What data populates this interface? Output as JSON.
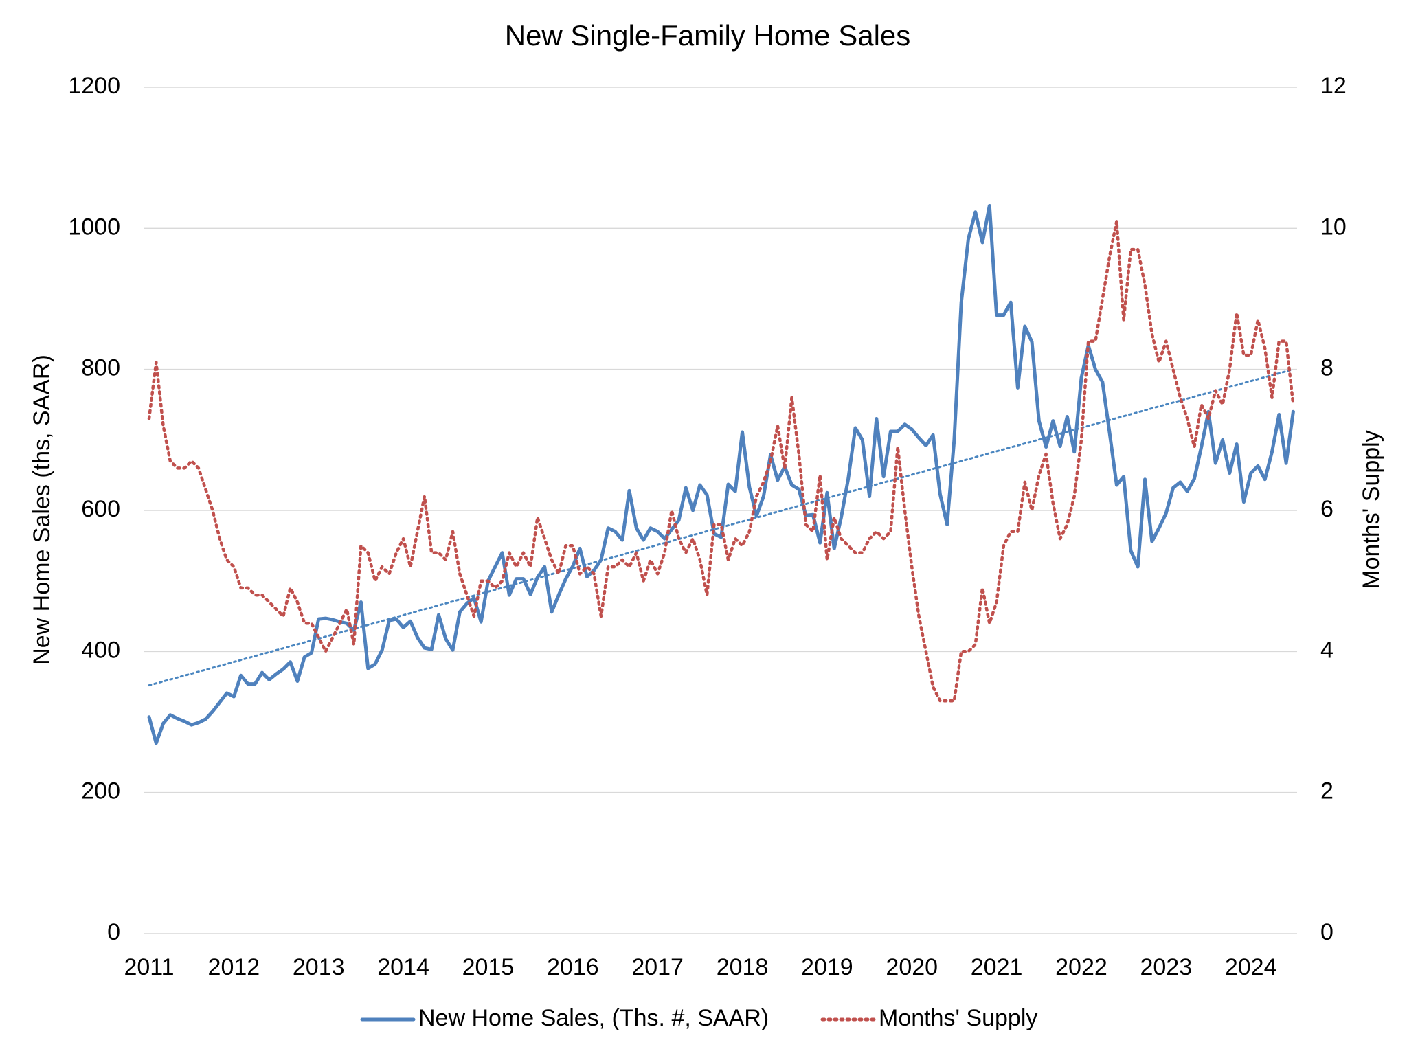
{
  "chart_data": {
    "type": "line",
    "title": "New Single-Family Home Sales",
    "y_label": "New Home Sales (ths, SAAR)",
    "y2_label": "Months' Supply",
    "categories": [
      "2011",
      null,
      null,
      null,
      null,
      null,
      null,
      null,
      null,
      null,
      null,
      null,
      "2012",
      null,
      null,
      null,
      null,
      null,
      null,
      null,
      null,
      null,
      null,
      null,
      "2013",
      null,
      null,
      null,
      null,
      null,
      null,
      null,
      null,
      null,
      null,
      null,
      "2014",
      null,
      null,
      null,
      null,
      null,
      null,
      null,
      null,
      null,
      null,
      null,
      "2015",
      null,
      null,
      null,
      null,
      null,
      null,
      null,
      null,
      null,
      null,
      null,
      "2016",
      null,
      null,
      null,
      null,
      null,
      null,
      null,
      null,
      null,
      null,
      null,
      "2017",
      null,
      null,
      null,
      null,
      null,
      null,
      null,
      null,
      null,
      null,
      null,
      "2018",
      null,
      null,
      null,
      null,
      null,
      null,
      null,
      null,
      null,
      null,
      null,
      "2019",
      null,
      null,
      null,
      null,
      null,
      null,
      null,
      null,
      null,
      null,
      null,
      "2020",
      null,
      null,
      null,
      null,
      null,
      null,
      null,
      null,
      null,
      null,
      null,
      "2021",
      null,
      null,
      null,
      null,
      null,
      null,
      null,
      null,
      null,
      null,
      null,
      "2022",
      null,
      null,
      null,
      null,
      null,
      null,
      null,
      null,
      null,
      null,
      null,
      "2023",
      null,
      null,
      null,
      null,
      null,
      null,
      null,
      null,
      null,
      null,
      null,
      "2024",
      null,
      null,
      null,
      null,
      null,
      null
    ],
    "series": [
      {
        "name": "New Home Sales, (Ths. #, SAAR)",
        "color": "#4f81bd",
        "dash": "solid",
        "values": [
          307,
          270,
          298,
          310,
          305,
          301,
          296,
          299,
          304,
          315,
          328,
          341,
          336,
          366,
          354,
          354,
          370,
          360,
          368,
          375,
          385,
          358,
          392,
          398,
          446,
          447,
          445,
          442,
          440,
          430,
          470,
          376,
          382,
          402,
          444,
          446,
          434,
          443,
          420,
          405,
          403,
          452,
          418,
          402,
          456,
          468,
          476,
          442,
          500,
          520,
          540,
          480,
          503,
          503,
          481,
          505,
          520,
          456,
          480,
          503,
          521,
          546,
          506,
          515,
          530,
          575,
          570,
          558,
          628,
          575,
          558,
          575,
          570,
          560,
          573,
          586,
          632,
          600,
          636,
          622,
          567,
          562,
          637,
          627,
          711,
          633,
          592,
          620,
          679,
          643,
          662,
          636,
          630,
          593,
          594,
          554,
          625,
          546,
          590,
          645,
          717,
          700,
          620,
          730,
          648,
          712,
          712,
          722,
          715,
          703,
          692,
          707,
          623,
          580,
          700,
          895,
          985,
          1023,
          980,
          1032,
          877,
          877,
          895,
          774,
          861,
          839,
          727,
          690,
          727,
          691,
          733,
          683,
          788,
          834,
          800,
          782,
          710,
          636,
          648,
          543,
          520,
          644,
          556,
          575,
          596,
          632,
          640,
          627,
          645,
          690,
          740,
          667,
          700,
          653,
          694,
          612,
          653,
          663,
          644,
          683,
          736,
          667,
          740
        ]
      },
      {
        "name": "Months' Supply",
        "color": "#c0504d",
        "dash": "dotted",
        "axis": "y2",
        "values": [
          7.3,
          8.1,
          7.2,
          6.7,
          6.6,
          6.6,
          6.7,
          6.6,
          6.3,
          6.0,
          5.6,
          5.3,
          5.2,
          4.9,
          4.9,
          4.8,
          4.8,
          4.7,
          4.6,
          4.5,
          4.9,
          4.7,
          4.4,
          4.4,
          4.2,
          4.0,
          4.2,
          4.4,
          4.6,
          4.1,
          5.5,
          5.4,
          5.0,
          5.2,
          5.1,
          5.4,
          5.6,
          5.2,
          5.7,
          6.2,
          5.4,
          5.4,
          5.3,
          5.7,
          5.1,
          4.8,
          4.5,
          5.0,
          5.0,
          4.9,
          5.0,
          5.4,
          5.2,
          5.4,
          5.2,
          5.9,
          5.6,
          5.3,
          5.1,
          5.5,
          5.5,
          5.1,
          5.2,
          5.1,
          4.5,
          5.2,
          5.2,
          5.3,
          5.2,
          5.4,
          5.0,
          5.3,
          5.1,
          5.4,
          6.0,
          5.6,
          5.4,
          5.6,
          5.3,
          4.8,
          5.8,
          5.8,
          5.3,
          5.6,
          5.5,
          5.7,
          6.2,
          6.4,
          6.7,
          7.2,
          6.6,
          7.6,
          6.8,
          5.8,
          5.7,
          6.5,
          5.3,
          5.9,
          5.6,
          5.5,
          5.4,
          5.4,
          5.6,
          5.7,
          5.6,
          5.7,
          6.9,
          6.0,
          5.2,
          4.5,
          4.0,
          3.5,
          3.3,
          3.3,
          3.3,
          4.0,
          4.0,
          4.1,
          4.9,
          4.4,
          4.7,
          5.5,
          5.7,
          5.7,
          6.4,
          6.0,
          6.5,
          6.8,
          6.1,
          5.6,
          5.8,
          6.2,
          7.0,
          8.4,
          8.4,
          9.0,
          9.6,
          10.1,
          8.7,
          9.7,
          9.7,
          9.2,
          8.5,
          8.1,
          8.4,
          8.0,
          7.6,
          7.3,
          6.9,
          7.5,
          7.3,
          7.7,
          7.5,
          8.0,
          8.8,
          8.2,
          8.2,
          8.7,
          8.3,
          7.6,
          8.4,
          8.4,
          7.5
        ]
      }
    ],
    "trendline": {
      "color": "#4a86c0",
      "values": [
        352,
        800
      ]
    },
    "ylim": [
      0,
      1200
    ],
    "yticks": [
      0,
      200,
      400,
      600,
      800,
      1000,
      1200
    ],
    "y2lim": [
      0,
      12
    ],
    "y2ticks": [
      0,
      2,
      4,
      6,
      8,
      10,
      12
    ],
    "grid": true,
    "legend": "bottom"
  }
}
